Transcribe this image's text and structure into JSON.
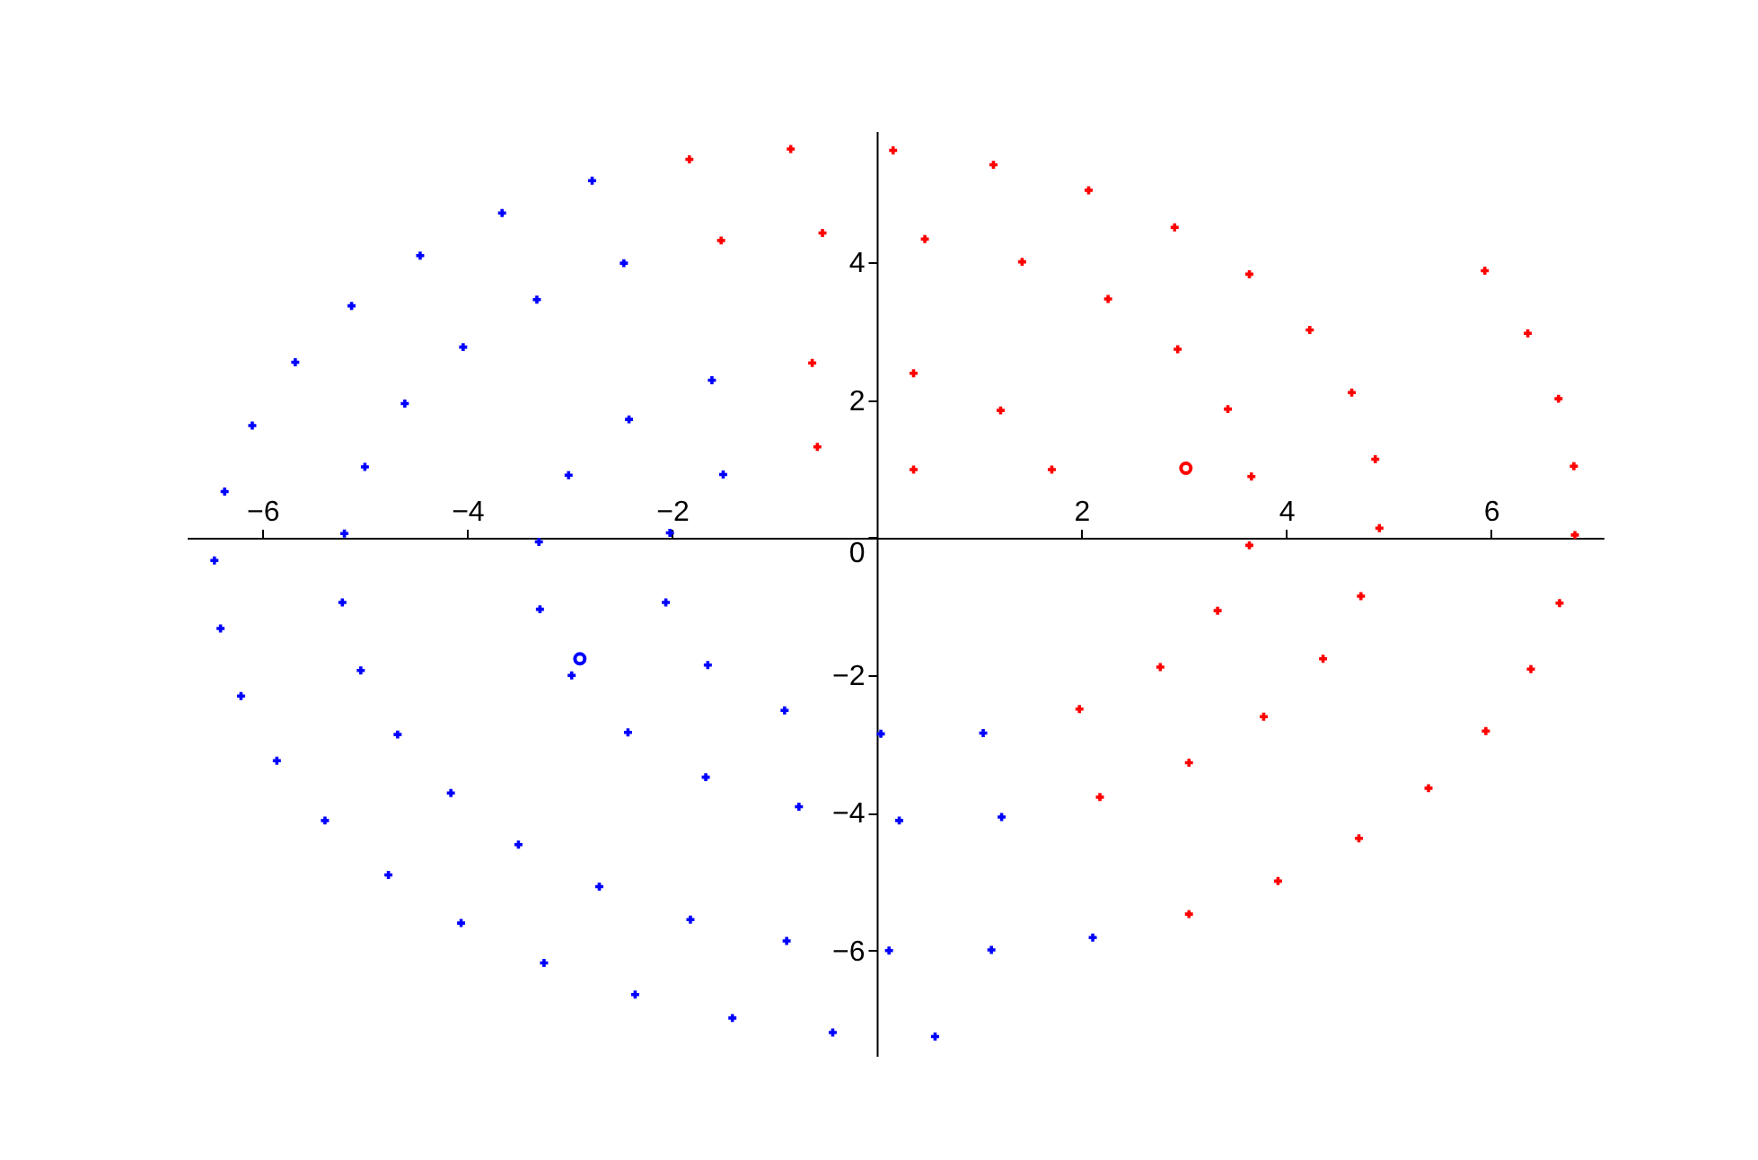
{
  "chart_data": {
    "type": "scatter",
    "xlim": [
      -6.74,
      7.1
    ],
    "ylim": [
      -7.53,
      5.91
    ],
    "xticks": [
      -6,
      -4,
      -2,
      2,
      4,
      6
    ],
    "yticks": [
      -6,
      -4,
      -2,
      0,
      2,
      4
    ],
    "grid": false,
    "legend": false,
    "series": [
      {
        "color": "#0000ff",
        "marker": "cross",
        "x": [
          -6.37,
          -6.1,
          -5.68,
          -5.13,
          -4.46,
          -3.66,
          -2.78,
          -5.0,
          -4.61,
          -4.04,
          -3.32,
          -2.47,
          -3.01,
          -2.42,
          -1.61,
          -1.5,
          -5.2,
          -3.3,
          -2.02,
          -6.47,
          -6.41,
          -6.21,
          -5.86,
          -5.39,
          -4.77,
          -4.06,
          -3.25,
          -2.36,
          -1.41,
          -0.43,
          -5.22,
          -5.04,
          -4.68,
          -4.16,
          -3.5,
          -2.71,
          -1.82,
          -0.88,
          -3.29,
          -2.98,
          -2.43,
          -1.67,
          -0.76,
          -2.06,
          -1.65,
          -0.9,
          0.04,
          1.04,
          0.22,
          1.22,
          0.12,
          1.12,
          2.11,
          0.57
        ],
        "values": [
          0.67,
          1.63,
          2.55,
          3.37,
          4.1,
          4.72,
          5.19,
          1.03,
          1.95,
          2.77,
          3.46,
          3.99,
          0.91,
          1.72,
          2.29,
          0.92,
          0.06,
          -0.06,
          0.07,
          -0.33,
          -1.32,
          -2.3,
          -3.24,
          -4.11,
          -4.9,
          -5.6,
          -6.18,
          -6.64,
          -6.98,
          -7.19,
          -0.94,
          -1.93,
          -2.86,
          -3.71,
          -4.46,
          -5.07,
          -5.55,
          -5.86,
          -1.04,
          -2.0,
          -2.83,
          -3.48,
          -3.91,
          -0.94,
          -1.85,
          -2.51,
          -2.85,
          -2.84,
          -4.11,
          -4.06,
          -6.0,
          -5.99,
          -5.81,
          -7.25
        ]
      },
      {
        "color": "#ff0000",
        "marker": "cross",
        "x": [
          -1.83,
          -0.84,
          -1.52,
          -0.53,
          -0.63,
          -0.58,
          0.16,
          1.14,
          2.07,
          2.91,
          3.64,
          5.94,
          0.47,
          1.42,
          2.26,
          2.94,
          4.23,
          6.36,
          0.36,
          1.21,
          3.43,
          4.64,
          6.66,
          0.36,
          1.71,
          3.66,
          4.87,
          6.81,
          4.91,
          6.82,
          3.64,
          3.33,
          4.73,
          6.67,
          2.77,
          4.36,
          6.39,
          1.98,
          3.78,
          5.95,
          3.05,
          2.18,
          5.39,
          4.71,
          3.92,
          3.05
        ],
        "values": [
          5.5,
          5.65,
          4.32,
          4.43,
          2.54,
          1.32,
          5.63,
          5.42,
          5.05,
          4.51,
          3.83,
          3.88,
          4.34,
          4.01,
          3.47,
          2.74,
          3.02,
          2.97,
          2.39,
          1.85,
          1.87,
          2.11,
          2.02,
          0.99,
          0.99,
          0.89,
          1.14,
          1.04,
          0.14,
          0.04,
          -0.11,
          -1.06,
          -0.85,
          -0.95,
          -1.88,
          -1.76,
          -1.91,
          -2.49,
          -2.6,
          -2.81,
          -3.27,
          -3.77,
          -3.64,
          -4.37,
          -4.99,
          -5.47
        ]
      },
      {
        "color": "#ff0000",
        "marker": "circle",
        "x": [
          3.02
        ],
        "values": [
          1.01
        ]
      },
      {
        "color": "#0000ff",
        "marker": "circle",
        "x": [
          -2.9
        ],
        "values": [
          -1.76
        ]
      }
    ]
  }
}
